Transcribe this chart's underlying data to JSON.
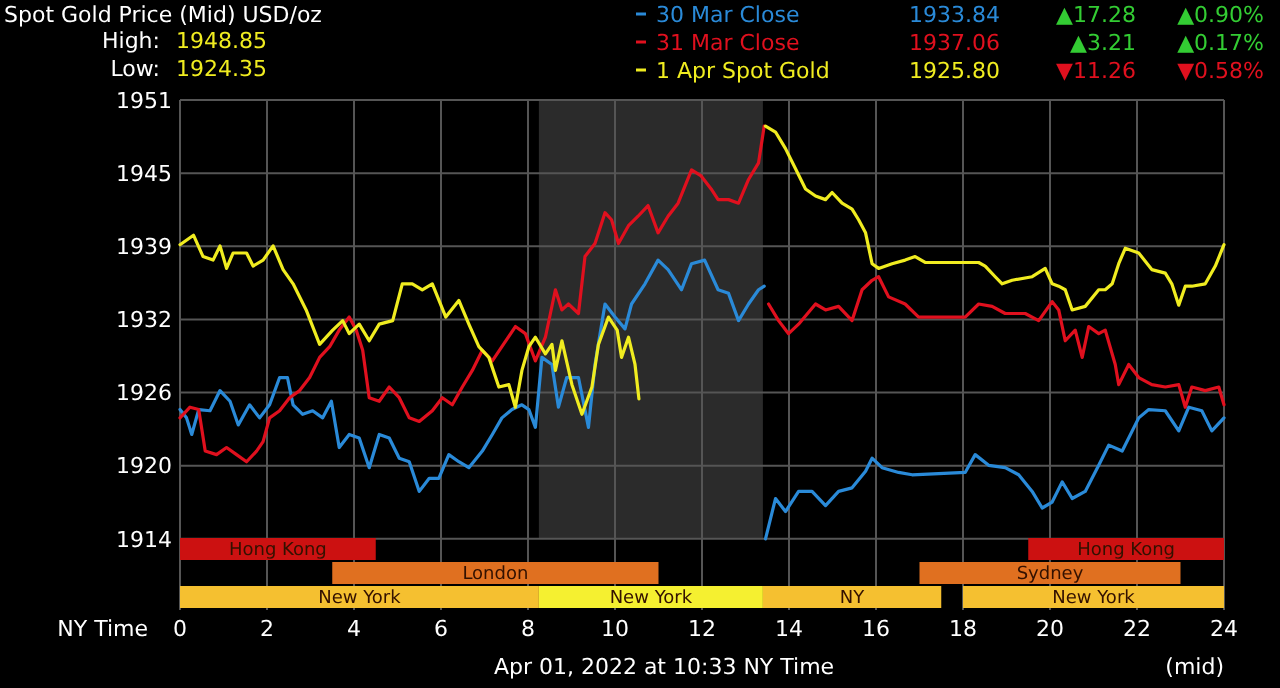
{
  "chart_data": {
    "type": "line",
    "title": "Spot Gold Price (Mid) USD/oz",
    "xlabel": "NY Time",
    "legend": "top right",
    "grid": true,
    "xlim": [
      0,
      24
    ],
    "xticks": [
      0,
      2,
      4,
      6,
      8,
      10,
      12,
      14,
      16,
      18,
      20,
      22,
      24
    ],
    "ylim": [
      1908,
      1951
    ],
    "yticks": [
      1914,
      {
        "value": 1920.17,
        "label": "1920"
      },
      {
        "value": 1926.33,
        "label": "1926"
      },
      {
        "value": 1932.5,
        "label": "1932"
      },
      {
        "value": 1938.67,
        "label": "1939"
      },
      {
        "value": 1944.83,
        "label": "1945"
      },
      1951
    ],
    "annotations": [
      "High:",
      "1948.85",
      "Low:",
      "1924.35",
      "1933.84",
      "▲17.28",
      "▲0.90%",
      "1937.06",
      "▲3.21",
      "▲0.17%",
      "1925.80",
      "▼11.26",
      "▼0.58%",
      "Apr 01, 2022 at 10:33 NY Time",
      "(mid)"
    ],
    "bands": [
      {
        "axis": "x",
        "from": 8.25,
        "to": 13.4,
        "color": "#2b2b2b"
      },
      {
        "axis": "x",
        "from": 0,
        "to": 4.5,
        "label": "Hong Kong",
        "color": "#cc1111"
      },
      {
        "axis": "x",
        "from": 19.5,
        "to": 24,
        "label": "Hong Kong",
        "color": "#cc1111"
      },
      {
        "axis": "x",
        "from": 3.5,
        "to": 11,
        "label": "London",
        "color": "#e07020"
      },
      {
        "axis": "x",
        "from": 17,
        "to": 23,
        "label": "Sydney",
        "color": "#e07020"
      },
      {
        "axis": "x",
        "from": 0,
        "to": 8.25,
        "label": "New York",
        "color": "#f5c030"
      },
      {
        "axis": "x",
        "from": 8.25,
        "to": 13.4,
        "label": "New York",
        "color": "#f5f030"
      },
      {
        "axis": "x",
        "from": 13.4,
        "to": 17.5,
        "label": "NY",
        "color": "#f5c030"
      },
      {
        "axis": "x",
        "from": 18,
        "to": 24,
        "label": "New York",
        "color": "#f5c030"
      }
    ],
    "series": [
      {
        "name": "30 Mar Close",
        "color": "#2a8ad8",
        "x": [
          0,
          0.15,
          0.27,
          0.43,
          0.69,
          0.92,
          1.15,
          1.34,
          1.6,
          1.83,
          2.06,
          2.29,
          2.47,
          2.6,
          2.82,
          3.05,
          3.28,
          3.48,
          3.66,
          3.89,
          4.12,
          4.35,
          4.58,
          4.81,
          5.04,
          5.27,
          5.5,
          5.73,
          5.95,
          6.18,
          6.41,
          6.64,
          6.95,
          7.18,
          7.4,
          7.63,
          7.86,
          8.02,
          8.17,
          8.32,
          8.55,
          8.7,
          8.89,
          9.16,
          9.39,
          9.54,
          9.77,
          10,
          10.23,
          10.38,
          10.69,
          10.99,
          11.22,
          11.53,
          11.76,
          12.06,
          12.37,
          12.61,
          12.84,
          13.07,
          13.3,
          13.43,
          13.45,
          13.46,
          13.69,
          13.92,
          14.22,
          14.53,
          14.84,
          15.14,
          15.45,
          15.76,
          15.91,
          16.14,
          16.52,
          16.83,
          18.05,
          18.28,
          18.59,
          18.97,
          19.28,
          19.59,
          19.82,
          20.05,
          20.28,
          20.51,
          20.81,
          21.12,
          21.35,
          21.66,
          22.04,
          22.27,
          22.65,
          22.96,
          23.19,
          23.49,
          23.72,
          24
        ],
        "values": [
          1924.9,
          1924.2,
          1922.8,
          1924.9,
          1924.8,
          1926.5,
          1925.6,
          1923.6,
          1925.3,
          1924.2,
          1925.3,
          1927.6,
          1927.6,
          1925.3,
          1924.5,
          1924.8,
          1924.2,
          1925.6,
          1921.7,
          1922.8,
          1922.5,
          1920,
          1922.8,
          1922.5,
          1920.8,
          1920.5,
          1918,
          1919.1,
          1919.1,
          1921.1,
          1920.5,
          1920,
          1921.4,
          1922.8,
          1924.2,
          1924.9,
          1925.3,
          1924.9,
          1923.4,
          1929.3,
          1928.7,
          1925.1,
          1927.6,
          1927.6,
          1923.4,
          1928.7,
          1933.8,
          1932.7,
          1931.7,
          1933.8,
          1935.5,
          1937.5,
          1936.7,
          1935,
          1937.2,
          1937.5,
          1935,
          1934.7,
          1932.4,
          1933.8,
          1935,
          1935.3,
          null,
          1914,
          1917.4,
          1916.3,
          1918,
          1918,
          1916.8,
          1918,
          1918.3,
          1919.7,
          1920.8,
          1920,
          1919.6,
          1919.4,
          1919.6,
          1921.1,
          1920.2,
          1920,
          1919.4,
          1918,
          1916.6,
          1917.1,
          1918.8,
          1917.4,
          1918,
          1920.2,
          1921.9,
          1921.4,
          1924.2,
          1924.9,
          1924.8,
          1923.1,
          1925.1,
          1924.8,
          1923.1,
          1924.2
        ]
      },
      {
        "name": "31 Mar Close",
        "color": "#e0101e",
        "x": [
          0,
          0.23,
          0.43,
          0.58,
          0.84,
          1.07,
          1.3,
          1.53,
          1.76,
          1.91,
          2.06,
          2.29,
          2.52,
          2.75,
          2.98,
          3.21,
          3.44,
          3.66,
          3.89,
          4.05,
          4.2,
          4.35,
          4.58,
          4.81,
          5.04,
          5.27,
          5.5,
          5.8,
          6.03,
          6.26,
          6.49,
          6.72,
          6.95,
          7.18,
          7.4,
          7.71,
          7.94,
          8.17,
          8.4,
          8.63,
          8.78,
          8.93,
          9.16,
          9.31,
          9.54,
          9.77,
          9.92,
          10.08,
          10.31,
          10.53,
          10.76,
          10.99,
          11.22,
          11.45,
          11.76,
          11.98,
          12.21,
          12.37,
          12.61,
          12.84,
          13.07,
          13.3,
          13.43,
          13.48,
          13.53,
          13.76,
          13.99,
          14.22,
          14.61,
          14.84,
          15.14,
          15.45,
          15.68,
          15.91,
          16.06,
          16.29,
          16.67,
          16.98,
          18.05,
          18.36,
          18.67,
          18.97,
          19.43,
          19.74,
          20.05,
          20.2,
          20.35,
          20.58,
          20.74,
          20.89,
          21.12,
          21.27,
          21.5,
          21.58,
          21.81,
          22.04,
          22.34,
          22.65,
          22.96,
          23.11,
          23.26,
          23.57,
          23.88,
          24
        ],
        "values": [
          1924.2,
          1925.1,
          1924.9,
          1921.4,
          1921.1,
          1921.7,
          1921.1,
          1920.5,
          1921.4,
          1922.2,
          1924.2,
          1924.8,
          1925.9,
          1926.5,
          1927.6,
          1929.3,
          1930.2,
          1931.6,
          1932.7,
          1931.6,
          1929.9,
          1925.9,
          1925.6,
          1926.8,
          1925.9,
          1924.2,
          1923.9,
          1924.8,
          1925.9,
          1925.3,
          1926.8,
          1928.2,
          1929.9,
          1929,
          1930.2,
          1931.9,
          1931.3,
          1929,
          1931,
          1935,
          1933.3,
          1933.8,
          1933,
          1937.8,
          1938.9,
          1941.5,
          1940.9,
          1938.9,
          1940.4,
          1941.2,
          1942.1,
          1939.8,
          1941.2,
          1942.3,
          1945.1,
          1944.6,
          1943.5,
          1942.6,
          1942.6,
          1942.3,
          1944.3,
          1945.7,
          1948.8,
          null,
          1933.8,
          1932.4,
          1931.3,
          1932.1,
          1933.8,
          1933.3,
          1933.6,
          1932.4,
          1935,
          1935.8,
          1936.1,
          1934.4,
          1933.8,
          1932.7,
          1932.7,
          1933.8,
          1933.6,
          1933,
          1933,
          1932.4,
          1934,
          1933.3,
          1930.7,
          1931.6,
          1929.3,
          1931.9,
          1931.3,
          1931.6,
          1928.7,
          1927,
          1928.7,
          1927.6,
          1927,
          1926.8,
          1927,
          1925.1,
          1926.8,
          1926.5,
          1926.8,
          1925.3
        ]
      },
      {
        "name": "1 Apr Spot Gold",
        "color": "#f0ec20",
        "x": [
          0,
          0.31,
          0.53,
          0.76,
          0.92,
          1.07,
          1.22,
          1.53,
          1.68,
          1.91,
          2.14,
          2.37,
          2.6,
          2.9,
          3.21,
          3.51,
          3.74,
          3.89,
          4.12,
          4.35,
          4.58,
          4.89,
          5.11,
          5.34,
          5.57,
          5.8,
          6.11,
          6.41,
          6.64,
          6.87,
          7.1,
          7.33,
          7.56,
          7.71,
          7.86,
          8.02,
          8.17,
          8.4,
          8.55,
          8.63,
          8.78,
          9.01,
          9.24,
          9.47,
          9.62,
          9.85,
          10.05,
          10.15,
          10.31,
          10.46,
          10.55,
          12,
          13.46,
          13.69,
          13.92,
          14.15,
          14.38,
          14.61,
          14.84,
          14.99,
          15.22,
          15.45,
          15.6,
          15.76,
          15.91,
          16.06,
          16.37,
          16.67,
          16.9,
          17.13,
          18.36,
          18.51,
          18.74,
          18.9,
          19.13,
          19.59,
          19.89,
          20.05,
          20.2,
          20.35,
          20.51,
          20.81,
          21.12,
          21.27,
          21.43,
          21.58,
          21.73,
          22.04,
          22.34,
          22.65,
          22.8,
          22.96,
          23.11,
          23.26,
          23.57,
          23.8,
          24
        ],
        "values": [
          1938.8,
          1939.6,
          1937.8,
          1937.5,
          1938.7,
          1936.8,
          1938.1,
          1938.1,
          1937,
          1937.5,
          1938.7,
          1936.7,
          1935.5,
          1933.3,
          1930.4,
          1931.6,
          1932.4,
          1931.3,
          1932.1,
          1930.7,
          1932.1,
          1932.4,
          1935.5,
          1935.5,
          1935,
          1935.5,
          1932.7,
          1934.1,
          1932.1,
          1930.2,
          1929.3,
          1926.8,
          1927,
          1925.1,
          1928.2,
          1930.2,
          1931,
          1929.6,
          1930.4,
          1928.2,
          1930.7,
          1927,
          1924.5,
          1926.8,
          1930.4,
          1932.7,
          1931.6,
          1929.3,
          1931,
          1928.7,
          1925.8,
          null,
          1948.8,
          1948.3,
          1946.9,
          1945.2,
          1943.5,
          1942.9,
          1942.6,
          1943.2,
          1942.3,
          1941.8,
          1940.9,
          1939.8,
          1937.2,
          1936.8,
          1937.2,
          1937.5,
          1937.8,
          1937.3,
          1937.3,
          1937,
          1936.1,
          1935.5,
          1935.8,
          1936.1,
          1936.8,
          1935.5,
          1935.3,
          1935,
          1933.3,
          1933.6,
          1935,
          1935,
          1935.5,
          1937.2,
          1938.5,
          1938.1,
          1936.7,
          1936.4,
          1935.5,
          1933.7,
          1935.3,
          1935.3,
          1935.5,
          1937,
          1938.8
        ]
      }
    ]
  }
}
